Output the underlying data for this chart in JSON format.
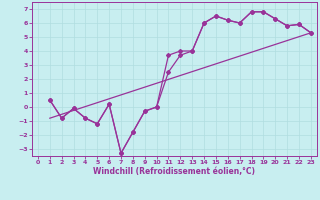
{
  "xlabel": "Windchill (Refroidissement éolien,°C)",
  "bg_color": "#c8eef0",
  "grid_color": "#b0dde0",
  "line_color": "#993399",
  "spine_color": "#993399",
  "xlim": [
    -0.5,
    23.5
  ],
  "ylim": [
    -3.5,
    7.5
  ],
  "xticks": [
    0,
    1,
    2,
    3,
    4,
    5,
    6,
    7,
    8,
    9,
    10,
    11,
    12,
    13,
    14,
    15,
    16,
    17,
    18,
    19,
    20,
    21,
    22,
    23
  ],
  "yticks": [
    -3,
    -2,
    -1,
    0,
    1,
    2,
    3,
    4,
    5,
    6,
    7
  ],
  "line1_x": [
    1,
    2,
    3,
    4,
    5,
    6,
    7,
    8,
    9,
    10,
    11,
    12,
    13,
    14,
    15,
    16,
    17,
    18,
    19,
    20,
    21,
    22,
    23
  ],
  "line1_y": [
    0.5,
    -0.8,
    -0.1,
    -0.8,
    -1.2,
    0.2,
    -3.3,
    -1.8,
    -0.3,
    0.0,
    2.5,
    3.7,
    4.0,
    6.0,
    6.5,
    6.2,
    6.0,
    6.8,
    6.8,
    6.3,
    5.8,
    5.9,
    5.3
  ],
  "line2_x": [
    1,
    2,
    3,
    4,
    5,
    6,
    7,
    8,
    9,
    10,
    11,
    12,
    13,
    14,
    15,
    16,
    17,
    18,
    19,
    20,
    21,
    22,
    23
  ],
  "line2_y": [
    0.5,
    -0.8,
    -0.1,
    -0.8,
    -1.2,
    0.2,
    -3.3,
    -1.8,
    -0.3,
    0.0,
    3.7,
    4.0,
    4.0,
    6.0,
    6.5,
    6.2,
    6.0,
    6.8,
    6.8,
    6.3,
    5.8,
    5.9,
    5.3
  ],
  "line3_x": [
    1,
    23
  ],
  "line3_y": [
    -0.8,
    5.3
  ],
  "tick_fontsize": 4.5,
  "xlabel_fontsize": 5.5,
  "linewidth": 0.9,
  "markersize": 2.0
}
